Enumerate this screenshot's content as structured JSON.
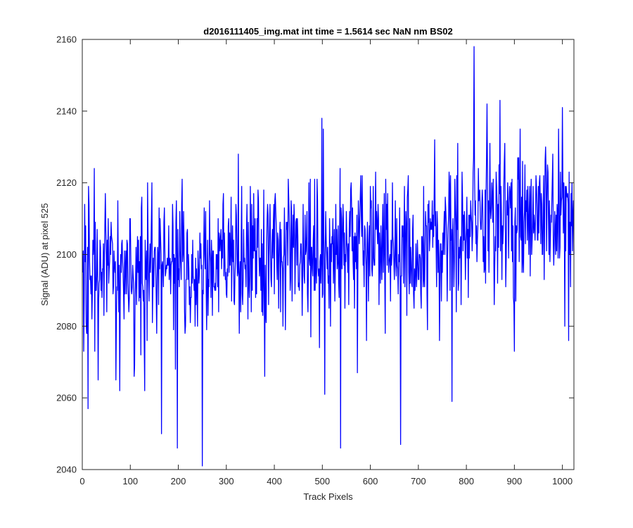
{
  "chart_data": {
    "type": "line",
    "title": "d2016111405_img.mat int time = 1.5614 sec  NaN nm BS02",
    "xlabel": "Track Pixels",
    "ylabel": "Signal (ADU) at pixel 525",
    "xlim": [
      0,
      1024
    ],
    "ylim": [
      2040,
      2160
    ],
    "xticks": [
      0,
      100,
      200,
      300,
      400,
      500,
      600,
      700,
      800,
      900,
      1000
    ],
    "yticks": [
      2040,
      2060,
      2080,
      2100,
      2120,
      2140,
      2160
    ],
    "grid": false,
    "legend": "none",
    "line_color": "#0000ff",
    "series": [
      {
        "x_start": 1,
        "x_step": 1,
        "count": 1024,
        "y_baseline_start": 2094,
        "y_baseline_end": 2107,
        "noise_std": 9.5,
        "y_min_observed": 2041,
        "y_max_observed": 2158,
        "notable_points": [
          {
            "x": 3,
            "y": 2073
          },
          {
            "x": 12,
            "y": 2057
          },
          {
            "x": 25,
            "y": 2124
          },
          {
            "x": 33,
            "y": 2065
          },
          {
            "x": 48,
            "y": 2117
          },
          {
            "x": 78,
            "y": 2062
          },
          {
            "x": 130,
            "y": 2062
          },
          {
            "x": 145,
            "y": 2120
          },
          {
            "x": 165,
            "y": 2050
          },
          {
            "x": 180,
            "y": 2108
          },
          {
            "x": 198,
            "y": 2046
          },
          {
            "x": 208,
            "y": 2121
          },
          {
            "x": 250,
            "y": 2041
          },
          {
            "x": 350,
            "y": 2119
          },
          {
            "x": 380,
            "y": 2066
          },
          {
            "x": 435,
            "y": 2115
          },
          {
            "x": 475,
            "y": 2121
          },
          {
            "x": 505,
            "y": 2061
          },
          {
            "x": 538,
            "y": 2046
          },
          {
            "x": 560,
            "y": 2120
          },
          {
            "x": 600,
            "y": 2119
          },
          {
            "x": 663,
            "y": 2047
          },
          {
            "x": 720,
            "y": 2114
          },
          {
            "x": 770,
            "y": 2059
          },
          {
            "x": 808,
            "y": 2105
          },
          {
            "x": 816,
            "y": 2158
          },
          {
            "x": 825,
            "y": 2124
          },
          {
            "x": 843,
            "y": 2142
          },
          {
            "x": 870,
            "y": 2143
          },
          {
            "x": 900,
            "y": 2073
          },
          {
            "x": 912,
            "y": 2135
          },
          {
            "x": 935,
            "y": 2121
          },
          {
            "x": 992,
            "y": 2135
          },
          {
            "x": 1000,
            "y": 2141
          },
          {
            "x": 1005,
            "y": 2080
          },
          {
            "x": 1013,
            "y": 2076
          },
          {
            "x": 1020,
            "y": 2120
          }
        ]
      }
    ]
  }
}
